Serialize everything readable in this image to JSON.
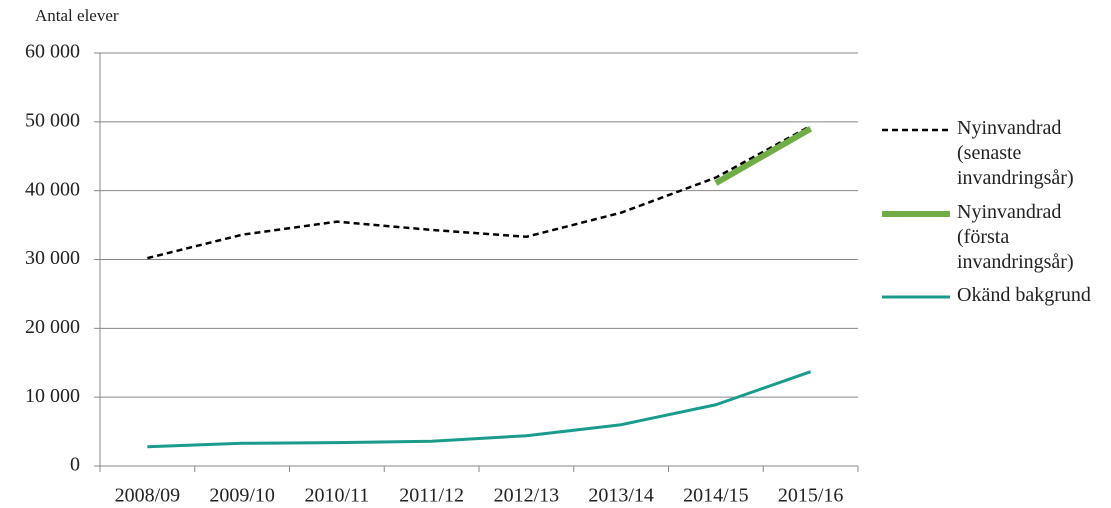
{
  "chart_data": {
    "type": "line",
    "y_label": "Antal elever",
    "categories": [
      "2008/09",
      "2009/10",
      "2010/11",
      "2011/12",
      "2012/13",
      "2013/14",
      "2014/15",
      "2015/16"
    ],
    "series": [
      {
        "name": "Nyinvandrad (senaste invandringsår)",
        "color": "#000000",
        "dash": true,
        "values": [
          30200,
          33600,
          35500,
          34300,
          33300,
          36800,
          41900,
          49400
        ]
      },
      {
        "name": "Nyinvandrad (första invandringsår)",
        "color": "#70ad47",
        "dash": false,
        "values": [
          null,
          null,
          null,
          null,
          null,
          null,
          41100,
          49000
        ]
      },
      {
        "name": "Okänd bakgrund",
        "color": "#1a9b8c",
        "dash": false,
        "values": [
          2800,
          3300,
          3400,
          3600,
          4400,
          6000,
          8900,
          13700
        ]
      }
    ],
    "ylim": [
      0,
      60000
    ],
    "yticks": [
      0,
      {
        "value": 10000,
        "label": "10 000"
      },
      {
        "value": 20000,
        "label": "20 000"
      },
      {
        "value": 30000,
        "label": "30 000"
      },
      {
        "value": 40000,
        "label": "40 000"
      },
      {
        "value": 50000,
        "label": "50 000"
      },
      {
        "value": 60000,
        "label": "60 000"
      }
    ],
    "grid": true,
    "legend": "right"
  }
}
